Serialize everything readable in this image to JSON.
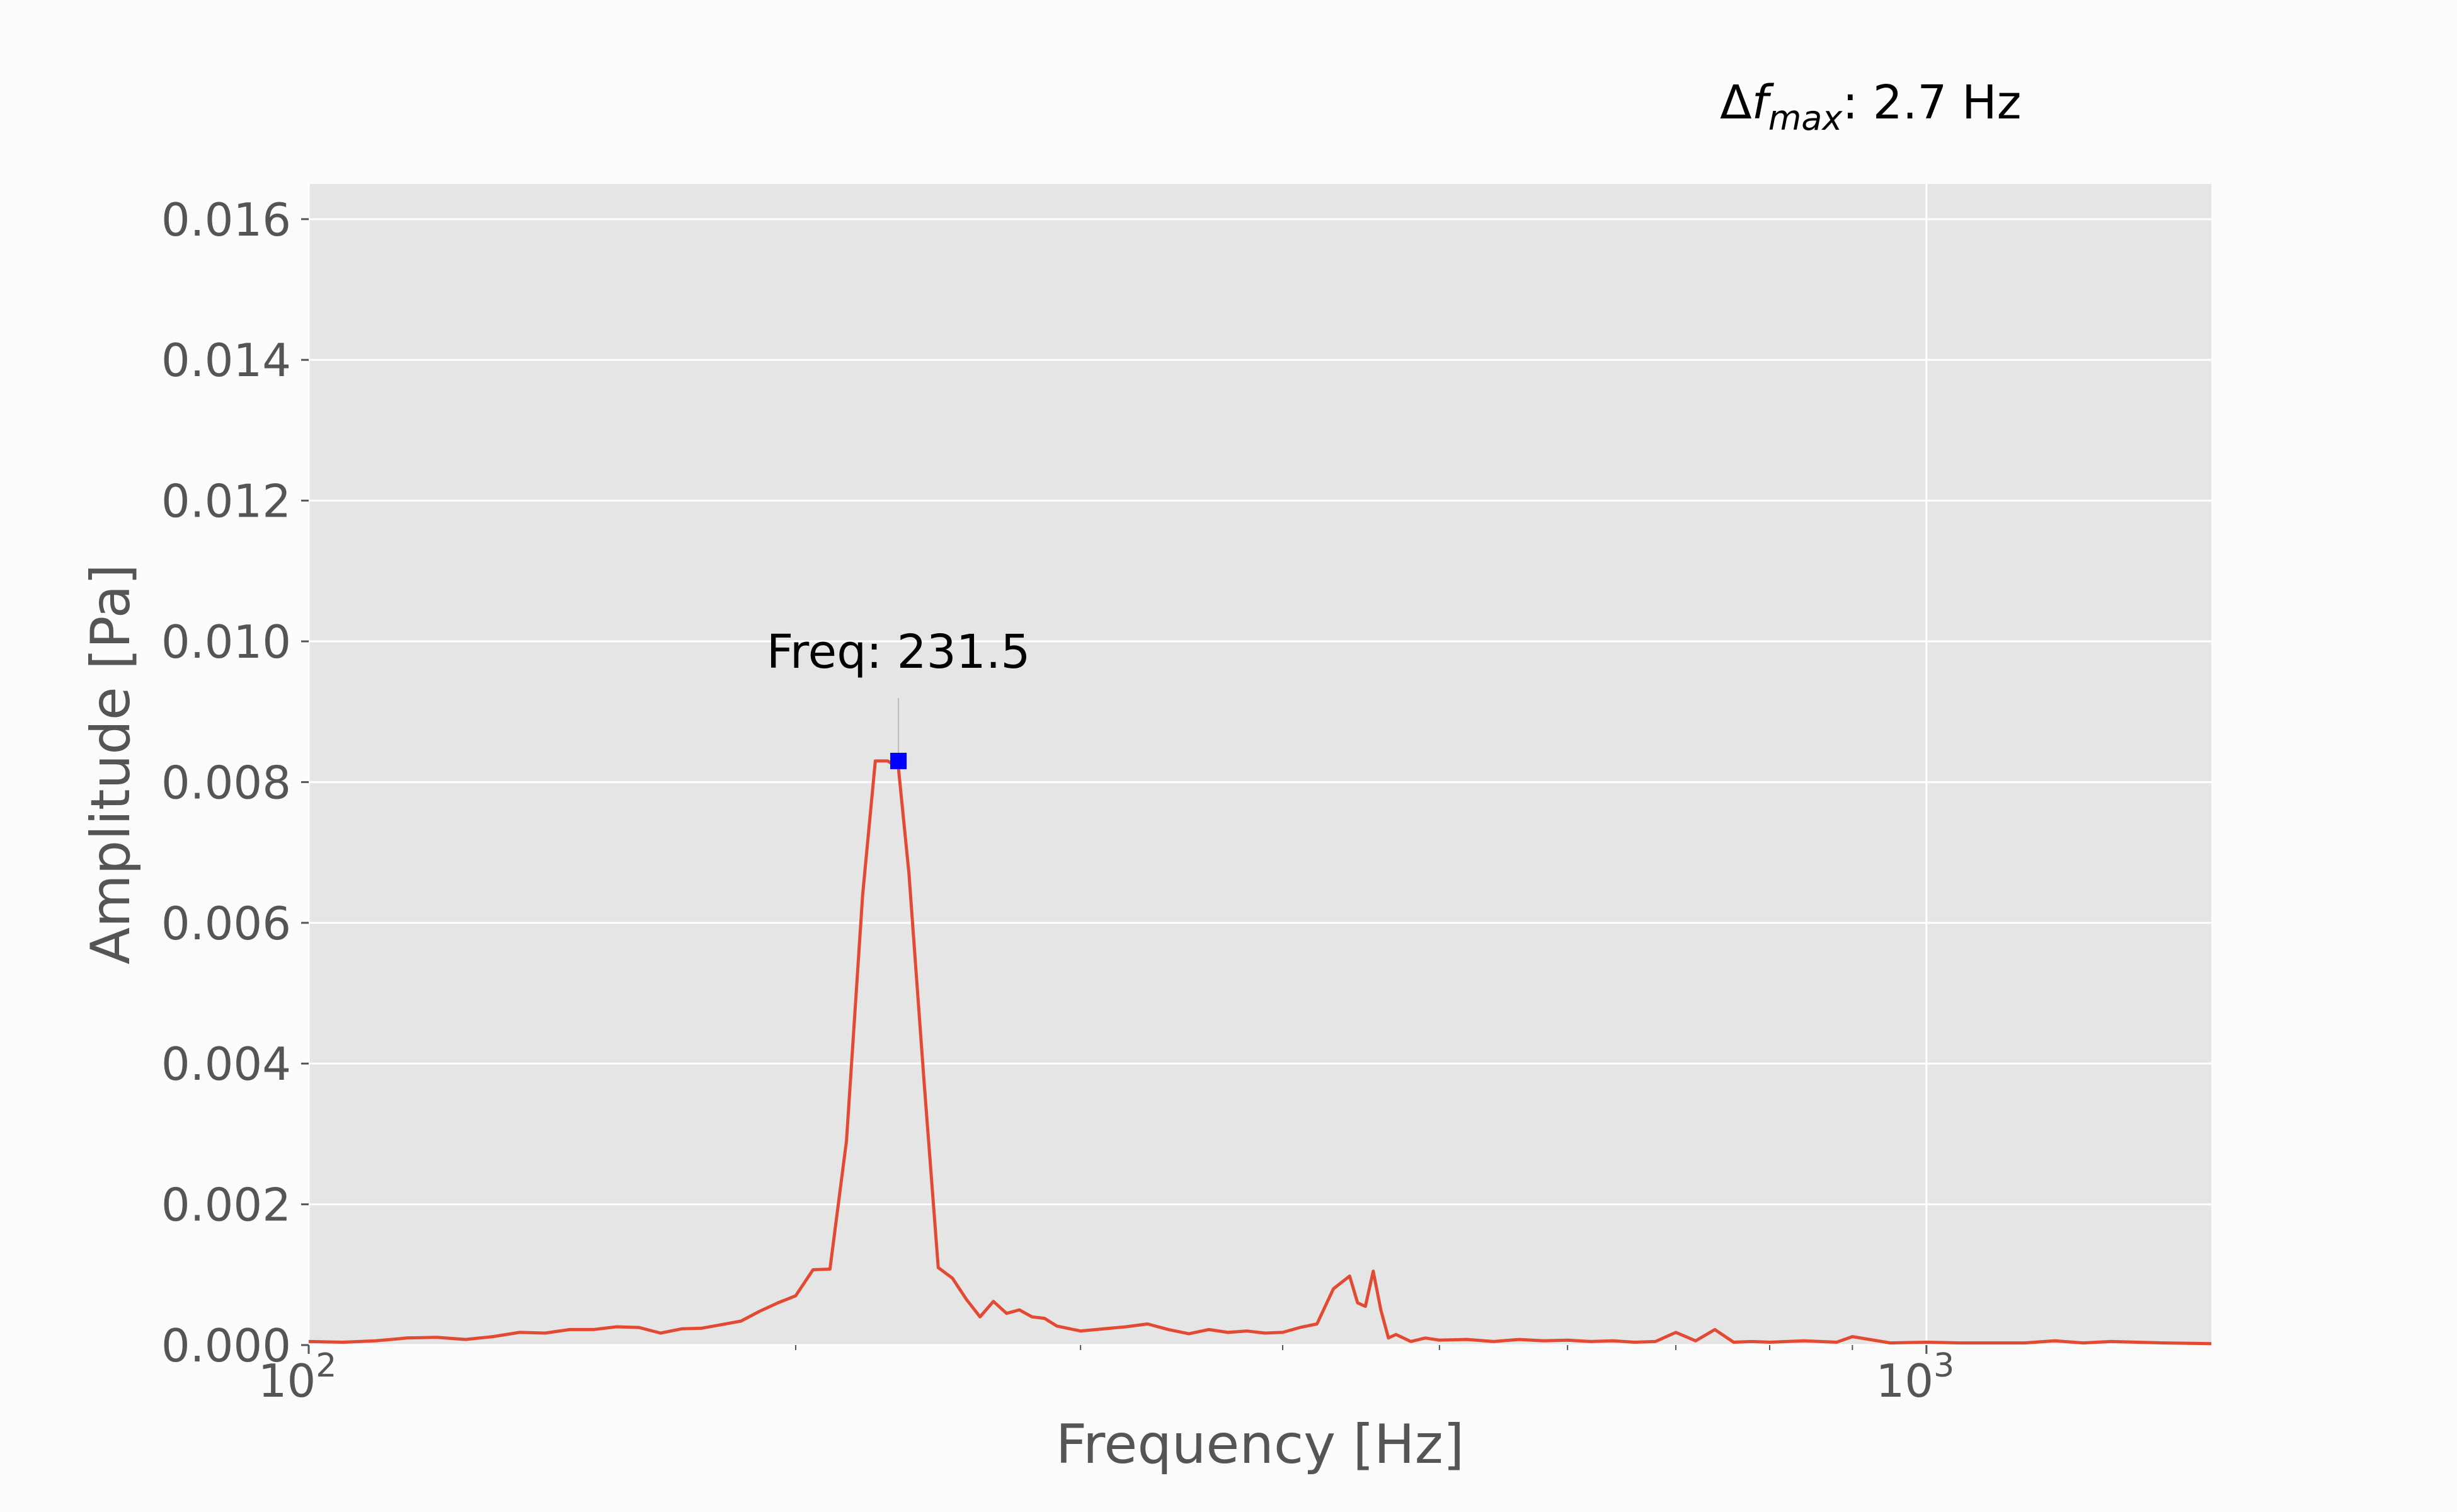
{
  "chart_data": {
    "type": "line",
    "title": "",
    "xlabel": "Frequency [Hz]",
    "ylabel": "Amplitude [Pa]",
    "x_scale": "log",
    "xlim": [
      100,
      1500
    ],
    "ylim": [
      0,
      0.0165
    ],
    "grid": true,
    "x_major_ticks": [
      {
        "value": 100,
        "base": "10",
        "exp": "2"
      },
      {
        "value": 1000,
        "base": "10",
        "exp": "3"
      }
    ],
    "x_minor_ticks": [
      200,
      300,
      400,
      500,
      600,
      700,
      800,
      900
    ],
    "y_ticks": [
      "0.000",
      "0.002",
      "0.004",
      "0.006",
      "0.008",
      "0.010",
      "0.012",
      "0.014",
      "0.016"
    ],
    "series": [
      {
        "color": "#e24a33",
        "x": [
          100,
          105,
          110,
          115,
          120,
          125,
          130,
          135,
          140,
          145,
          150,
          155,
          160,
          165,
          170,
          175,
          180,
          185,
          190,
          195,
          200,
          205,
          210,
          215,
          220,
          224,
          228,
          231.5,
          235,
          240,
          245,
          250,
          255,
          260,
          265,
          270,
          275,
          280,
          285,
          290,
          300,
          310,
          320,
          330,
          340,
          350,
          360,
          370,
          380,
          390,
          400,
          410,
          420,
          430,
          440,
          445,
          450,
          455,
          460,
          465,
          470,
          475,
          480,
          490,
          500,
          520,
          540,
          560,
          580,
          600,
          620,
          640,
          660,
          680,
          700,
          720,
          740,
          760,
          780,
          800,
          840,
          880,
          900,
          950,
          1000,
          1050,
          1100,
          1150,
          1200,
          1250,
          1300,
          1400,
          1500
        ],
        "y": [
          5e-05,
          4e-05,
          6e-05,
          0.0001,
          0.00011,
          8e-05,
          0.00012,
          0.00018,
          0.00017,
          0.00022,
          0.00022,
          0.00026,
          0.00025,
          0.00017,
          0.00023,
          0.00024,
          0.00029,
          0.00034,
          0.00048,
          0.0006,
          0.0007,
          0.00107,
          0.00108,
          0.0029,
          0.0064,
          0.0083,
          0.0083,
          0.0082,
          0.0067,
          0.0038,
          0.0011,
          0.00095,
          0.00065,
          0.0004,
          0.00062,
          0.00045,
          0.0005,
          0.0004,
          0.00038,
          0.00027,
          0.0002,
          0.00023,
          0.00026,
          0.0003,
          0.00022,
          0.00016,
          0.00022,
          0.00018,
          0.0002,
          0.00017,
          0.00018,
          0.00025,
          0.0003,
          0.0008,
          0.00098,
          0.0006,
          0.00055,
          0.00105,
          0.0005,
          0.0001,
          0.00015,
          0.0001,
          5e-05,
          0.0001,
          7e-05,
          8e-05,
          5e-05,
          8e-05,
          6e-05,
          7e-05,
          5e-05,
          6e-05,
          4e-05,
          5e-05,
          0.00018,
          6e-05,
          0.00022,
          4e-05,
          5e-05,
          4e-05,
          6e-05,
          4e-05,
          0.00012,
          3e-05,
          4e-05,
          3e-05,
          3e-05,
          3e-05,
          6e-05,
          3e-05,
          5e-05,
          3e-05,
          2e-05
        ]
      }
    ],
    "peak": {
      "x": 231.5,
      "y": 0.0083,
      "label": "Freq: 231.5",
      "marker_color": "#0000ff"
    },
    "resolution_note": {
      "prefix": "Δ",
      "symbol": "f",
      "subscript": "max",
      "suffix": ": 2.7 Hz"
    }
  }
}
